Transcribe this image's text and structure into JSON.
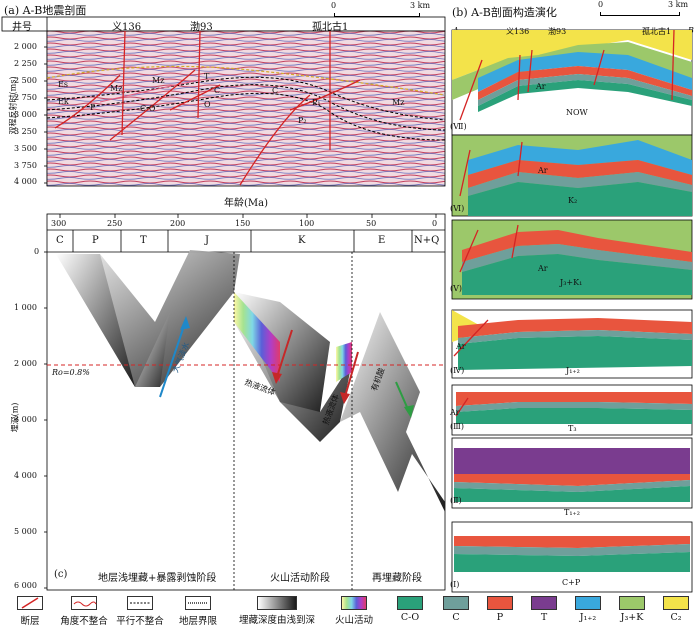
{
  "panel_a": {
    "title": "(a) A-B地震剖面",
    "row_label": "井号",
    "scale_zero": "0",
    "scale_max": "3 km",
    "wells": [
      "义136",
      "渤93",
      "孤北古1"
    ],
    "y_axis_label": "双程反射时(ms)",
    "y_ticks": [
      "2 000",
      "2 250",
      "2 500",
      "2 750",
      "3 000",
      "3 250",
      "3 500",
      "3 750",
      "4 000"
    ],
    "strata": [
      "Mz",
      "Mz",
      "Mz",
      "Es",
      "Ek",
      "P",
      "T",
      "C",
      "O",
      "C-O",
      "P₁",
      "P₂",
      "C"
    ]
  },
  "panel_b": {
    "title": "(b) A-B剖面构造演化",
    "scale_zero": "0",
    "scale_max": "3 km",
    "end_a": "A",
    "end_b": "B",
    "wells": [
      "义136",
      "渤93",
      "孤北古1"
    ],
    "basement": "Ar",
    "stages": [
      {
        "roman": "(Ⅶ)",
        "label": "NOW"
      },
      {
        "roman": "(Ⅵ)",
        "label": "K₂"
      },
      {
        "roman": "(Ⅴ)",
        "label": "J₃+K₁"
      },
      {
        "roman": "(Ⅳ)",
        "label": "J₁₊₂"
      },
      {
        "roman": "(Ⅲ)",
        "label": "T₃"
      },
      {
        "roman": "(Ⅱ)",
        "label": "T₁₊₂"
      },
      {
        "roman": "(Ⅰ)",
        "label": "C+P"
      }
    ]
  },
  "panel_c": {
    "age_title": "年龄(Ma)",
    "age_ticks": [
      "300",
      "250",
      "200",
      "150",
      "100",
      "50",
      "0"
    ],
    "periods": [
      "C",
      "P",
      "T",
      "J",
      "K",
      "E",
      "N+Q"
    ],
    "y_axis_label": "埋深(m)",
    "depth_ticks": [
      "0",
      "1 000",
      "2 000",
      "3 000",
      "4 000",
      "5 000",
      "6 000"
    ],
    "ro_label": "Ro=0.8%",
    "annotations": [
      "大气淡水",
      "热液流体",
      "热液流体",
      "有机酸"
    ],
    "panel_label": "(c)",
    "stage_labels": [
      "地层浅埋藏+暴露剥蚀阶段",
      "火山活动阶段",
      "再埋藏阶段"
    ]
  },
  "legend": [
    {
      "label": "断层",
      "type": "fault"
    },
    {
      "label": "角度不整合",
      "type": "angular"
    },
    {
      "label": "平行不整合",
      "type": "parallel"
    },
    {
      "label": "地层界限",
      "type": "boundary"
    },
    {
      "label": "埋藏深度由浅到深",
      "type": "gradient"
    },
    {
      "label": "火山活动",
      "type": "rainbow"
    },
    {
      "label": "C-O",
      "type": "swatch",
      "color": "#2aa17a"
    },
    {
      "label": "C",
      "type": "swatch",
      "color": "#6f9f9b"
    },
    {
      "label": "P",
      "type": "swatch",
      "color": "#e8553e"
    },
    {
      "label": "T",
      "type": "swatch",
      "color": "#7a3c8f"
    },
    {
      "label": "J₁₊₂",
      "type": "swatch",
      "color": "#39a8dd"
    },
    {
      "label": "J₃+K",
      "type": "swatch",
      "color": "#9cc86a"
    },
    {
      "label": "C₂",
      "type": "swatch",
      "color": "#f3e34a"
    }
  ]
}
